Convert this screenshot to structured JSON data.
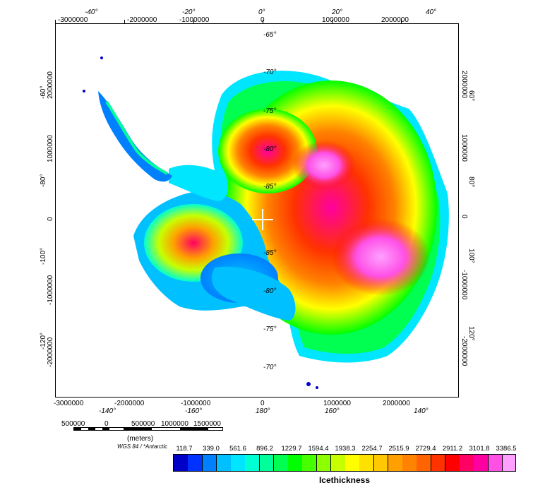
{
  "map": {
    "x_ticks_top": [
      "-3000000",
      "-2000000",
      "-1000000",
      "0",
      "1000000",
      "2000000"
    ],
    "x_ticks_bottom": [
      "-3000000",
      "-2000000",
      "-1000000",
      "0",
      "1000000",
      "2000000"
    ],
    "y_ticks_left": [
      "2000000",
      "1000000",
      "0",
      "-1000000",
      "-2000000"
    ],
    "y_ticks_right": [
      "2000000",
      "1000000",
      "0",
      "-1000000",
      "-2000000"
    ],
    "lon_top": [
      "-40°",
      "-20°",
      "0°",
      "20°",
      "40°"
    ],
    "lon_bottom": [
      "-140°",
      "-160°",
      "180°",
      "160°",
      "140°"
    ],
    "lon_left": [
      "-60°",
      "-80°",
      "-100°",
      "-120°"
    ],
    "lon_right": [
      "60°",
      "80°",
      "100°",
      "120°"
    ],
    "lat_labels": [
      "-65°",
      "-70°",
      "-75°",
      "-80°",
      "-85°",
      "-85°",
      "-80°",
      "-75°",
      "-70°"
    ]
  },
  "scalebar": {
    "ticks": [
      "500000",
      "0",
      "500000",
      "1000000",
      "1500000"
    ],
    "units": "(meters)",
    "datum": "WGS 84 / *Antarctic"
  },
  "colorbar": {
    "title": "Icethickness",
    "labels": [
      "118.7",
      "339.0",
      "561.6",
      "896.2",
      "1229.7",
      "1594.4",
      "1938.3",
      "2254.7",
      "2515.9",
      "2729.4",
      "2911.2",
      "3101.8",
      "3386.5"
    ],
    "colors": [
      "#0000c8",
      "#0032ff",
      "#0080ff",
      "#00c0ff",
      "#00e6ff",
      "#00ffd2",
      "#00ff9a",
      "#00ff50",
      "#00ff00",
      "#46ff00",
      "#8cff00",
      "#c8ff00",
      "#ffff00",
      "#ffe100",
      "#ffc800",
      "#ffa000",
      "#ff8200",
      "#ff6400",
      "#ff3200",
      "#ff0000",
      "#ff0064",
      "#ff00a0",
      "#ff50e6",
      "#ffa0ff"
    ]
  }
}
